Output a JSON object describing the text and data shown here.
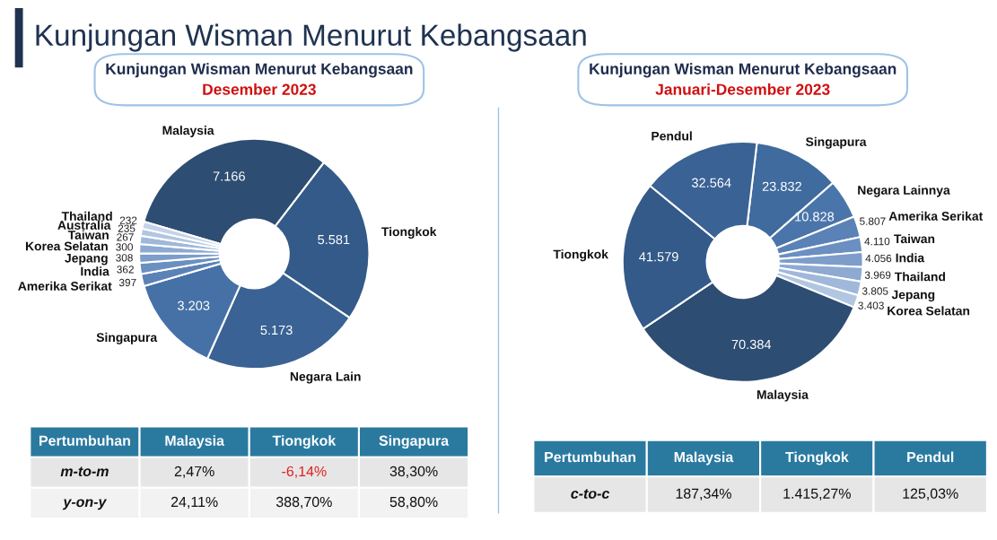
{
  "chart_data": [
    {
      "type": "donut",
      "title": "Kunjungan Wisman Menurut Kebangsaan",
      "subtitle": "Desember 2023",
      "categories": [
        "Malaysia",
        "Tiongkok",
        "Negara Lain",
        "Singapura",
        "Amerika Serikat",
        "India",
        "Jepang",
        "Korea Selatan",
        "Taiwan",
        "Australia",
        "Thailand"
      ],
      "values": [
        7166,
        5581,
        5173,
        3203,
        397,
        362,
        308,
        300,
        267,
        235,
        232
      ],
      "value_labels": [
        "7.166",
        "5.581",
        "5.173",
        "3.203",
        "397",
        "362",
        "308",
        "300",
        "267",
        "235",
        "232"
      ],
      "colors": [
        "#2e4d72",
        "#335a88",
        "#3a6294",
        "#4671a6",
        "#5b82b6",
        "#6b8fc0",
        "#7d9dca",
        "#8eaad2",
        "#a0b8da",
        "#b2c6e2",
        "#c4d3ea"
      ],
      "annotations": [
        "Kunjungan Wisman Menurut Kebangsaan",
        "Pertumbuhan",
        "Malaysia",
        "Tiongkok",
        "Singapura",
        "m-to-m",
        "2,47%",
        "-6,14%",
        "38,30%",
        "y-on-y",
        "24,11%",
        "388,70%",
        "58,80%"
      ]
    },
    {
      "type": "donut",
      "title": "Kunjungan Wisman Menurut Kebangsaan",
      "subtitle": "Januari-Desember 2023",
      "categories": [
        "Singapura",
        "Negara Lainnya",
        "Amerika Serikat",
        "Taiwan",
        "India",
        "Thailand",
        "Jepang",
        "Korea Selatan",
        "Malaysia",
        "Tiongkok",
        "Pendul"
      ],
      "values": [
        23832,
        10828,
        5807,
        4110,
        4056,
        3969,
        3805,
        3403,
        70384,
        41579,
        32564
      ],
      "value_labels": [
        "23.832",
        "10.828",
        "5.807",
        "4.110",
        "4.056",
        "3.969",
        "3.805",
        "3.403",
        "70.384",
        "41.579",
        "32.564"
      ],
      "colors": [
        "#3f6b9e",
        "#4a75aa",
        "#5b82b6",
        "#6b8fc0",
        "#7d9dca",
        "#8eaad2",
        "#a0b8da",
        "#b2c6e2",
        "#2e4d72",
        "#335a88",
        "#3a6294"
      ],
      "annotations": [
        "Pertumbuhan",
        "Malaysia",
        "Tiongkok",
        "Pendul",
        "c-to-c",
        "187,34%",
        "1.415,27%",
        "125,03%"
      ]
    }
  ]
}
